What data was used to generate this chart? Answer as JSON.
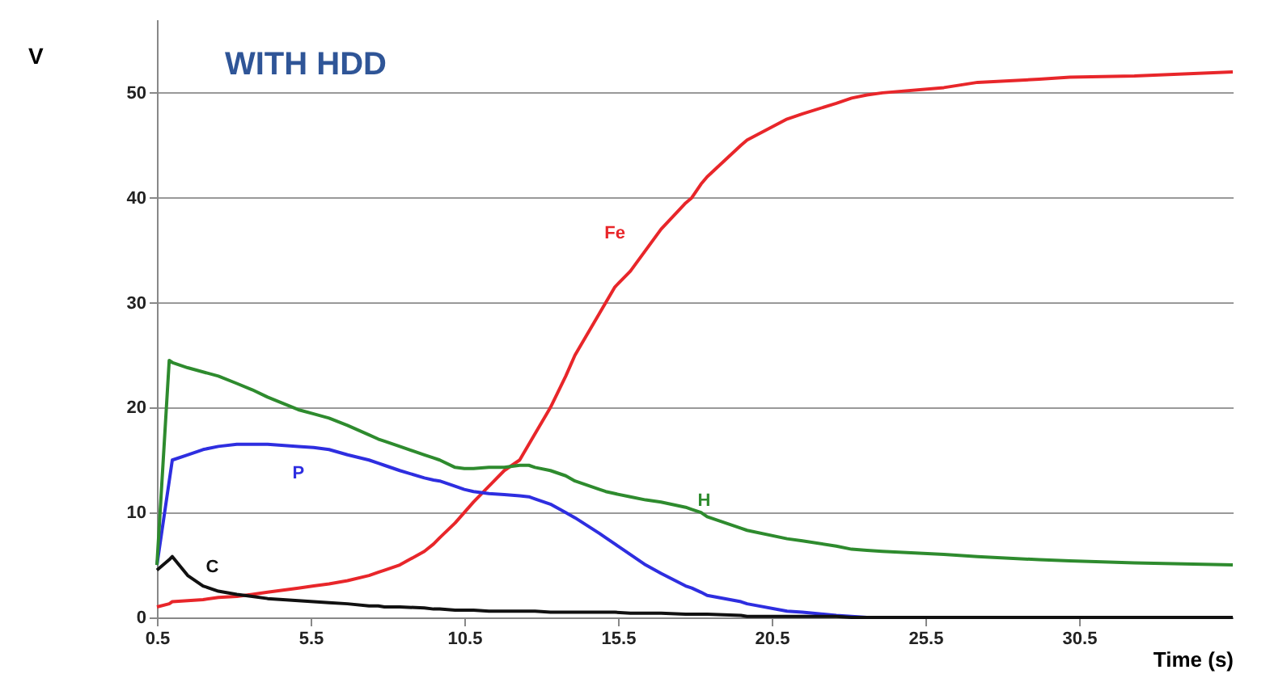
{
  "chart_data": {
    "type": "line",
    "title": "WITH HDD",
    "xlabel": "Time (s)",
    "ylabel": "V",
    "xlim": [
      0.5,
      35.5
    ],
    "xticks": [
      0.5,
      5.5,
      10.5,
      15.5,
      20.5,
      25.5,
      30.5
    ],
    "ylim": [
      0,
      57
    ],
    "yticks": [
      0,
      10,
      20,
      30,
      40,
      50
    ],
    "grid": "y",
    "marker": "none",
    "line_style": "solid",
    "x": [
      0.5,
      0.9,
      1.0,
      1.5,
      2.0,
      2.5,
      3.1,
      3.6,
      4.1,
      5.1,
      5.6,
      6.1,
      6.7,
      7.4,
      7.7,
      7.9,
      8.4,
      9.2,
      9.5,
      9.7,
      10.2,
      10.5,
      10.8,
      11.3,
      11.8,
      12.3,
      12.6,
      12.8,
      13.3,
      13.8,
      14.1,
      14.9,
      15.1,
      15.4,
      15.9,
      16.4,
      16.9,
      17.7,
      17.9,
      18.2,
      18.4,
      19.5,
      19.7,
      21.0,
      21.5,
      22.6,
      23.1,
      23.6,
      24.1,
      26.1,
      27.2,
      29.2,
      30.2,
      32.3,
      35.5
    ],
    "series": [
      {
        "name": "Fe",
        "color": "#e8262a",
        "values": [
          1.0,
          1.3,
          1.5,
          1.6,
          1.7,
          1.9,
          2.0,
          2.2,
          2.4,
          2.8,
          3.0,
          3.2,
          3.5,
          4.0,
          4.3,
          4.5,
          5.0,
          6.3,
          7.0,
          7.6,
          9.0,
          10.0,
          11.0,
          12.5,
          14.0,
          15.0,
          16.5,
          17.5,
          20.0,
          23.0,
          25.0,
          29.0,
          30.0,
          31.5,
          33.0,
          35.0,
          37.0,
          39.5,
          40.0,
          41.3,
          42.0,
          45.0,
          45.5,
          47.5,
          48.0,
          49.0,
          49.5,
          49.8,
          50.0,
          50.5,
          51.0,
          51.3,
          51.5,
          51.6,
          52.0
        ]
      },
      {
        "name": "P",
        "color": "#2e2ee0",
        "values": [
          5.0,
          13.0,
          15.0,
          15.5,
          16.0,
          16.3,
          16.5,
          16.5,
          16.5,
          16.3,
          16.2,
          16.0,
          15.5,
          15.0,
          14.7,
          14.5,
          14.0,
          13.3,
          13.1,
          13.0,
          12.5,
          12.2,
          12.0,
          11.8,
          11.7,
          11.6,
          11.5,
          11.3,
          10.8,
          10.0,
          9.5,
          8.0,
          7.6,
          7.0,
          6.0,
          5.0,
          4.2,
          3.0,
          2.8,
          2.4,
          2.1,
          1.5,
          1.3,
          0.6,
          0.5,
          0.2,
          0.1,
          0,
          0,
          null,
          null,
          null,
          null,
          null,
          null
        ]
      },
      {
        "name": "H",
        "color": "#2e8b2e",
        "values": [
          5.0,
          24.5,
          24.3,
          23.8,
          23.4,
          23.0,
          22.3,
          21.7,
          21.0,
          19.8,
          19.4,
          19.0,
          18.3,
          17.4,
          17.0,
          16.8,
          16.3,
          15.5,
          15.2,
          15.0,
          14.3,
          14.2,
          14.2,
          14.3,
          14.3,
          14.5,
          14.5,
          14.3,
          14.0,
          13.5,
          13.0,
          12.2,
          12.0,
          11.8,
          11.5,
          11.2,
          11.0,
          10.5,
          10.3,
          10.0,
          9.6,
          8.5,
          8.3,
          7.5,
          7.3,
          6.8,
          6.5,
          6.4,
          6.3,
          6.0,
          5.8,
          5.5,
          5.4,
          5.2,
          5.0
        ]
      },
      {
        "name": "C",
        "color": "#111111",
        "values": [
          4.5,
          5.5,
          5.8,
          4.0,
          3.0,
          2.5,
          2.2,
          2.0,
          1.8,
          1.6,
          1.5,
          1.4,
          1.3,
          1.1,
          1.1,
          1.0,
          1.0,
          0.9,
          0.8,
          0.8,
          0.7,
          0.7,
          0.7,
          0.6,
          0.6,
          0.6,
          0.6,
          0.6,
          0.5,
          0.5,
          0.5,
          0.5,
          0.5,
          0.5,
          0.4,
          0.4,
          0.4,
          0.3,
          0.3,
          0.3,
          0.3,
          0.2,
          0.1,
          0.1,
          0.1,
          0.1,
          0,
          0,
          0,
          0,
          0,
          0,
          0,
          0,
          0
        ]
      }
    ]
  }
}
